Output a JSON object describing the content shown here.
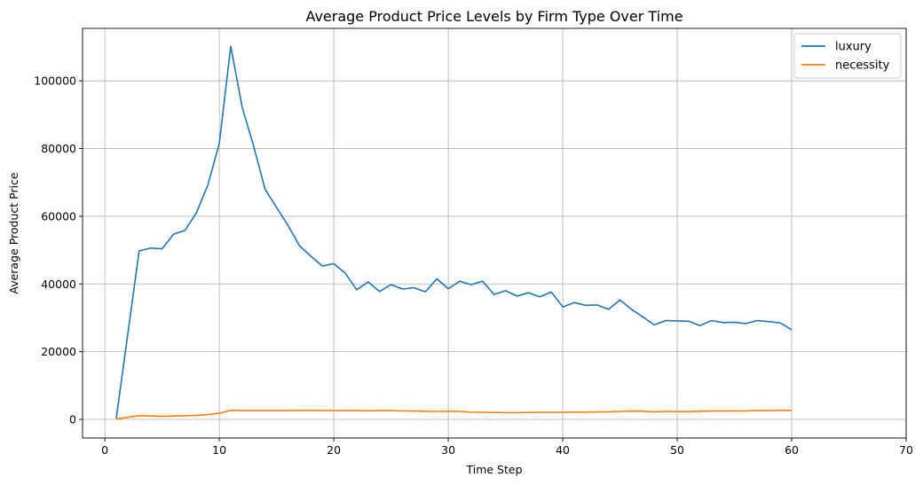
{
  "chart_data": {
    "type": "line",
    "title": "Average Product Price Levels by Firm Type Over Time",
    "xlabel": "Time Step",
    "ylabel": "Average Product Price",
    "xlim": [
      -1.95,
      70
    ],
    "ylim": [
      -5500,
      115500
    ],
    "xticks": [
      0,
      10,
      20,
      30,
      40,
      50,
      60,
      70
    ],
    "yticks": [
      0,
      20000,
      40000,
      60000,
      80000,
      100000
    ],
    "grid": true,
    "legend_position": "top-right",
    "series": [
      {
        "name": "luxury",
        "color": "#1f77b4",
        "x": [
          1,
          2,
          3,
          4,
          5,
          6,
          7,
          8,
          9,
          10,
          11,
          12,
          13,
          14,
          15,
          16,
          17,
          18,
          19,
          20,
          21,
          22,
          23,
          24,
          25,
          26,
          27,
          28,
          29,
          30,
          31,
          32,
          33,
          34,
          35,
          36,
          37,
          38,
          39,
          40,
          41,
          42,
          43,
          44,
          45,
          46,
          47,
          48,
          49,
          50,
          51,
          52,
          53,
          54,
          55,
          56,
          57,
          58,
          59,
          60
        ],
        "y": [
          300,
          25000,
          49800,
          50600,
          50400,
          54700,
          55800,
          61000,
          69200,
          81500,
          110200,
          92200,
          80700,
          68000,
          62600,
          57300,
          51300,
          48200,
          45300,
          46000,
          43200,
          38300,
          40600,
          37800,
          39800,
          38500,
          38900,
          37700,
          41500,
          38600,
          40800,
          39800,
          40800,
          36900,
          38000,
          36400,
          37400,
          36200,
          37600,
          33200,
          34500,
          33700,
          33800,
          32500,
          35300,
          32500,
          30300,
          27900,
          29200,
          29100,
          29000,
          27700,
          29200,
          28600,
          28700,
          28300,
          29200,
          28900,
          28500,
          26500
        ]
      },
      {
        "name": "necessity",
        "color": "#ff7f0e",
        "x": [
          1,
          2,
          3,
          4,
          5,
          6,
          7,
          8,
          9,
          10,
          11,
          12,
          13,
          14,
          15,
          16,
          17,
          18,
          19,
          20,
          21,
          22,
          23,
          24,
          25,
          26,
          27,
          28,
          29,
          30,
          31,
          32,
          33,
          34,
          35,
          36,
          37,
          38,
          39,
          40,
          41,
          42,
          43,
          44,
          45,
          46,
          47,
          48,
          49,
          50,
          51,
          52,
          53,
          54,
          55,
          56,
          57,
          58,
          59,
          60
        ],
        "y": [
          100,
          600,
          1100,
          1000,
          900,
          1000,
          1100,
          1200,
          1400,
          1800,
          2700,
          2600,
          2600,
          2600,
          2600,
          2600,
          2650,
          2650,
          2650,
          2600,
          2600,
          2600,
          2550,
          2600,
          2600,
          2500,
          2450,
          2400,
          2350,
          2400,
          2350,
          2150,
          2100,
          2050,
          2000,
          2000,
          2050,
          2100,
          2100,
          2100,
          2150,
          2150,
          2200,
          2250,
          2350,
          2450,
          2400,
          2250,
          2350,
          2300,
          2300,
          2400,
          2450,
          2450,
          2450,
          2500,
          2600,
          2600,
          2700,
          2650
        ]
      }
    ]
  }
}
